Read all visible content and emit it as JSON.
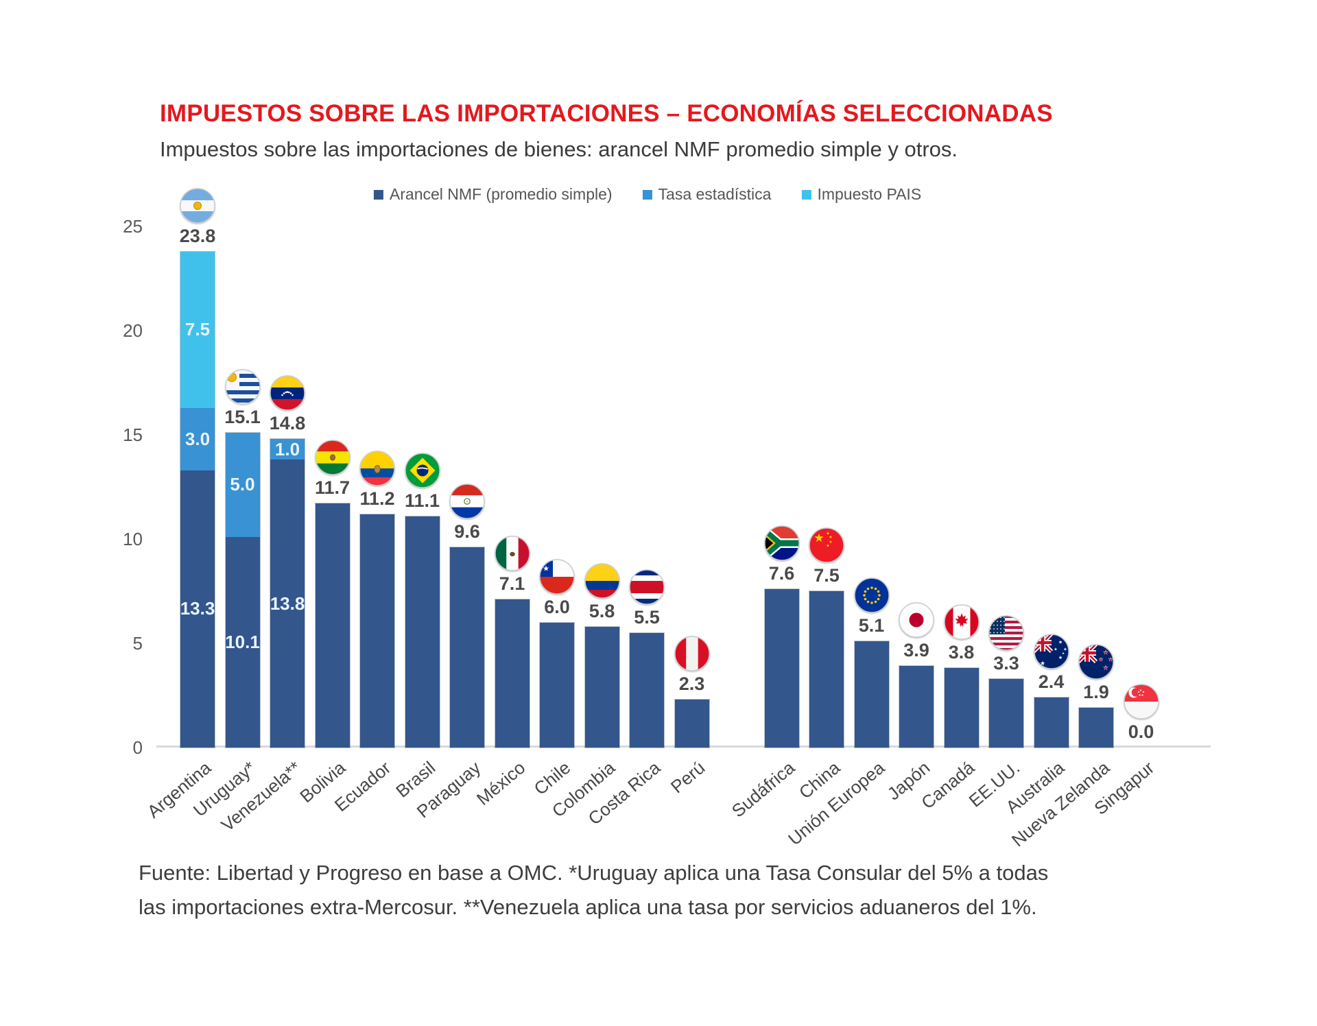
{
  "page": {
    "background": "#ffffff"
  },
  "header": {
    "title": "IMPUESTOS SOBRE LAS IMPORTACIONES – ECONOMÍAS SELECCIONADAS",
    "title_color": "#e3191e",
    "subtitle": "Impuestos sobre las importaciones de bienes: arancel NMF promedio simple y otros."
  },
  "footer": {
    "line1": "Fuente: Libertad y Progreso en base a OMC. *Uruguay aplica una Tasa Consular del 5% a todas",
    "line2": "las importaciones extra-Mercosur. **Venezuela aplica una tasa por servicios aduaneros del 1%."
  },
  "chart_data": {
    "type": "bar",
    "stacked": true,
    "title": "IMPUESTOS SOBRE LAS IMPORTACIONES – ECONOMÍAS SELECCIONADAS",
    "subtitle": "Impuestos sobre las importaciones de bienes: arancel NMF promedio simple y otros.",
    "ylabel": "",
    "xlabel": "",
    "ylim": [
      0,
      25
    ],
    "yticks": [
      25,
      20,
      15,
      10,
      5,
      0
    ],
    "grid": false,
    "legend_position": "top",
    "series": [
      {
        "name": "Arancel NMF (promedio simple)",
        "color": "#33568c"
      },
      {
        "name": "Tasa estadística",
        "color": "#3892d3"
      },
      {
        "name": "Impuesto PAIS",
        "color": "#40c1ec"
      }
    ],
    "gap_after_index": 11,
    "bars": [
      {
        "id": "argentina",
        "label": "Argentina",
        "flag_icon": "argentina-flag-icon",
        "total_label": "23.8",
        "segments": [
          {
            "series": 0,
            "value": 13.3,
            "label": "13.3"
          },
          {
            "series": 1,
            "value": 3.0,
            "label": "3.0"
          },
          {
            "series": 2,
            "value": 7.5,
            "label": "7.5"
          }
        ]
      },
      {
        "id": "uruguay",
        "label": "Uruguay*",
        "flag_icon": "uruguay-flag-icon",
        "total_label": "15.1",
        "segments": [
          {
            "series": 0,
            "value": 10.1,
            "label": "10.1"
          },
          {
            "series": 1,
            "value": 5.0,
            "label": "5.0"
          }
        ]
      },
      {
        "id": "venezuela",
        "label": "Venezuela**",
        "flag_icon": "venezuela-flag-icon",
        "total_label": "14.8",
        "segments": [
          {
            "series": 0,
            "value": 13.8,
            "label": "13.8"
          },
          {
            "series": 1,
            "value": 1.0,
            "label": "1.0"
          }
        ]
      },
      {
        "id": "bolivia",
        "label": "Bolivia",
        "flag_icon": "bolivia-flag-icon",
        "total_label": "11.7",
        "segments": [
          {
            "series": 0,
            "value": 11.7
          }
        ]
      },
      {
        "id": "ecuador",
        "label": "Ecuador",
        "flag_icon": "ecuador-flag-icon",
        "total_label": "11.2",
        "segments": [
          {
            "series": 0,
            "value": 11.2
          }
        ]
      },
      {
        "id": "brasil",
        "label": "Brasil",
        "flag_icon": "brasil-flag-icon",
        "total_label": "11.1",
        "segments": [
          {
            "series": 0,
            "value": 11.1
          }
        ]
      },
      {
        "id": "paraguay",
        "label": "Paraguay",
        "flag_icon": "paraguay-flag-icon",
        "total_label": "9.6",
        "segments": [
          {
            "series": 0,
            "value": 9.6
          }
        ]
      },
      {
        "id": "mexico",
        "label": "México",
        "flag_icon": "mexico-flag-icon",
        "total_label": "7.1",
        "segments": [
          {
            "series": 0,
            "value": 7.1
          }
        ]
      },
      {
        "id": "chile",
        "label": "Chile",
        "flag_icon": "chile-flag-icon",
        "total_label": "6.0",
        "segments": [
          {
            "series": 0,
            "value": 6.0
          }
        ]
      },
      {
        "id": "colombia",
        "label": "Colombia",
        "flag_icon": "colombia-flag-icon",
        "total_label": "5.8",
        "segments": [
          {
            "series": 0,
            "value": 5.8
          }
        ]
      },
      {
        "id": "costa-rica",
        "label": "Costa Rica",
        "flag_icon": "costa-rica-flag-icon",
        "total_label": "5.5",
        "segments": [
          {
            "series": 0,
            "value": 5.5
          }
        ]
      },
      {
        "id": "peru",
        "label": "Perú",
        "flag_icon": "peru-flag-icon",
        "total_label": "2.3",
        "segments": [
          {
            "series": 0,
            "value": 2.3
          }
        ]
      },
      {
        "id": "sudafrica",
        "label": "Sudáfrica",
        "flag_icon": "sudafrica-flag-icon",
        "total_label": "7.6",
        "segments": [
          {
            "series": 0,
            "value": 7.6
          }
        ]
      },
      {
        "id": "china",
        "label": "China",
        "flag_icon": "china-flag-icon",
        "total_label": "7.5",
        "segments": [
          {
            "series": 0,
            "value": 7.5
          }
        ]
      },
      {
        "id": "union-europea",
        "label": "Unión Europea",
        "flag_icon": "union-europea-flag-icon",
        "total_label": "5.1",
        "segments": [
          {
            "series": 0,
            "value": 5.1
          }
        ]
      },
      {
        "id": "japon",
        "label": "Japón",
        "flag_icon": "japon-flag-icon",
        "total_label": "3.9",
        "segments": [
          {
            "series": 0,
            "value": 3.9
          }
        ]
      },
      {
        "id": "canada",
        "label": "Canadá",
        "flag_icon": "canada-flag-icon",
        "total_label": "3.8",
        "segments": [
          {
            "series": 0,
            "value": 3.8
          }
        ]
      },
      {
        "id": "eeuu",
        "label": "EE.UU.",
        "flag_icon": "eeuu-flag-icon",
        "total_label": "3.3",
        "segments": [
          {
            "series": 0,
            "value": 3.3
          }
        ]
      },
      {
        "id": "australia",
        "label": "Australia",
        "flag_icon": "australia-flag-icon",
        "total_label": "2.4",
        "segments": [
          {
            "series": 0,
            "value": 2.4
          }
        ]
      },
      {
        "id": "nueva-zelanda",
        "label": "Nueva Zelanda",
        "flag_icon": "nueva-zelanda-flag-icon",
        "total_label": "1.9",
        "segments": [
          {
            "series": 0,
            "value": 1.9
          }
        ]
      },
      {
        "id": "singapur",
        "label": "Singapur",
        "flag_icon": "singapur-flag-icon",
        "total_label": "0.0",
        "segments": [
          {
            "series": 0,
            "value": 0.0
          }
        ]
      }
    ]
  }
}
